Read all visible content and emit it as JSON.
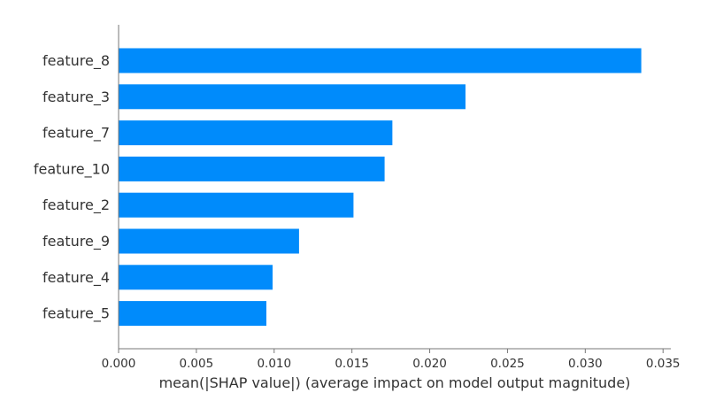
{
  "chart_data": {
    "type": "bar",
    "orientation": "horizontal",
    "categories": [
      "feature_8",
      "feature_3",
      "feature_7",
      "feature_10",
      "feature_2",
      "feature_9",
      "feature_4",
      "feature_5"
    ],
    "values": [
      0.0336,
      0.0223,
      0.0176,
      0.0171,
      0.0151,
      0.0116,
      0.0099,
      0.0095
    ],
    "xlabel": "mean(|SHAP value|) (average impact on model output magnitude)",
    "ylabel": "",
    "xlim": [
      0,
      0.0355
    ],
    "xticks": [
      0.0,
      0.005,
      0.01,
      0.015,
      0.02,
      0.025,
      0.03,
      0.035
    ],
    "xtick_labels": [
      "0.000",
      "0.005",
      "0.010",
      "0.015",
      "0.020",
      "0.025",
      "0.030",
      "0.035"
    ],
    "bar_color": "#008bfb",
    "grid": false,
    "legend": "none"
  }
}
